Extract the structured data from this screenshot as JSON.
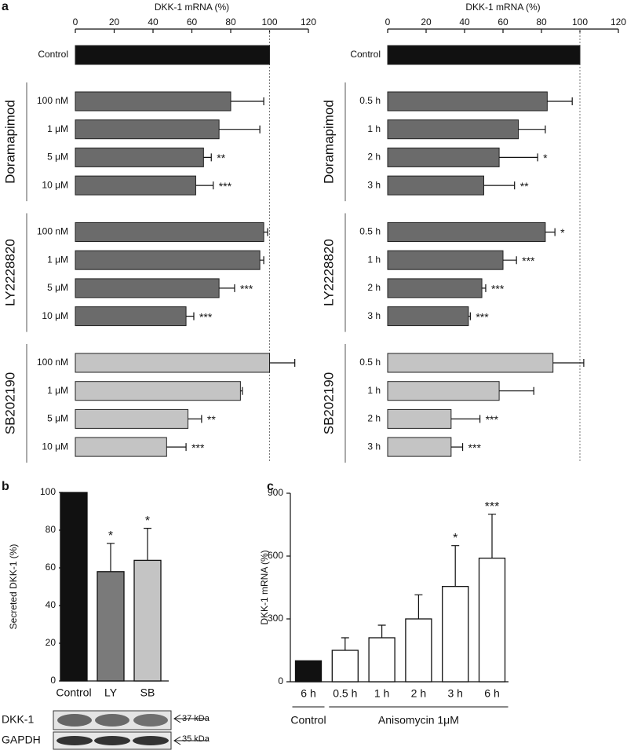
{
  "chart_data": [
    {
      "type": "hbar",
      "panel": "a",
      "xlabel": "DKK-1 mRNA (%)",
      "xlim": [
        0,
        120
      ],
      "xticks": [
        0,
        20,
        40,
        60,
        80,
        100,
        120
      ],
      "reference_line": 100,
      "groups": [
        {
          "color": "#111111",
          "categories": [
            "Control"
          ],
          "values": [
            100
          ],
          "errors": [
            null
          ],
          "annotations": [
            null
          ]
        },
        {
          "name": "Doramapimod",
          "color": "#6b6b6b",
          "categories": [
            "100 nM",
            "1 μM",
            "5 μM",
            "10 μM"
          ],
          "values": [
            80,
            74,
            66,
            62
          ],
          "errors": [
            17,
            21,
            4,
            9
          ],
          "annotations": [
            null,
            null,
            "**",
            "***"
          ]
        },
        {
          "name": "LY2228820",
          "color": "#6b6b6b",
          "categories": [
            "100 nM",
            "1 μM",
            "5 μM",
            "10 μM"
          ],
          "values": [
            97,
            95,
            74,
            57
          ],
          "errors": [
            2,
            2,
            8,
            4
          ],
          "annotations": [
            null,
            null,
            "***",
            "***"
          ]
        },
        {
          "name": "SB202190",
          "color": "#c4c4c4",
          "categories": [
            "100 nM",
            "1 μM",
            "5 μM",
            "10 μM"
          ],
          "values": [
            100,
            85,
            58,
            47
          ],
          "errors": [
            13,
            1,
            7,
            10
          ],
          "annotations": [
            null,
            null,
            "**",
            "***"
          ]
        }
      ]
    },
    {
      "type": "hbar",
      "xlabel": "DKK-1 mRNA (%)",
      "xlim": [
        0,
        120
      ],
      "xticks": [
        0,
        20,
        40,
        60,
        80,
        100,
        120
      ],
      "reference_line": 100,
      "groups": [
        {
          "color": "#111111",
          "categories": [
            "Control"
          ],
          "values": [
            100
          ],
          "errors": [
            null
          ],
          "annotations": [
            null
          ]
        },
        {
          "name": "Doramapimod",
          "color": "#6b6b6b",
          "categories": [
            "0.5 h",
            "1 h",
            "2 h",
            "3 h"
          ],
          "values": [
            83,
            68,
            58,
            50
          ],
          "errors": [
            13,
            14,
            20,
            16
          ],
          "annotations": [
            null,
            null,
            "*",
            "**"
          ]
        },
        {
          "name": "LY2228820",
          "color": "#6b6b6b",
          "categories": [
            "0.5 h",
            "1 h",
            "2 h",
            "3 h"
          ],
          "values": [
            82,
            60,
            49,
            42
          ],
          "errors": [
            5,
            7,
            2,
            1
          ],
          "annotations": [
            "*",
            "***",
            "***",
            "***"
          ]
        },
        {
          "name": "SB202190",
          "color": "#c4c4c4",
          "categories": [
            "0.5 h",
            "1 h",
            "2 h",
            "3 h"
          ],
          "values": [
            86,
            58,
            33,
            33
          ],
          "errors": [
            16,
            18,
            15,
            6
          ],
          "annotations": [
            null,
            null,
            "***",
            "***"
          ]
        }
      ]
    },
    {
      "type": "vbar",
      "panel": "b",
      "ylabel": "Secreted DKK-1 (%)",
      "ylim": [
        0,
        100
      ],
      "yticks": [
        0,
        20,
        40,
        60,
        80,
        100
      ],
      "groups": [
        {
          "color": "#111111",
          "categories": [
            "Control"
          ],
          "values": [
            100
          ],
          "errors": [
            null
          ],
          "annotations": [
            null
          ]
        },
        {
          "color": "#7a7a7a",
          "categories": [
            "LY"
          ],
          "values": [
            58
          ],
          "errors": [
            15
          ],
          "annotations": [
            "*"
          ]
        },
        {
          "color": "#c4c4c4",
          "categories": [
            "SB"
          ],
          "values": [
            64
          ],
          "errors": [
            17
          ],
          "annotations": [
            "*"
          ]
        }
      ],
      "blot": {
        "rows": [
          {
            "name": "DKK-1",
            "size": "37 kDa"
          },
          {
            "name": "GAPDH",
            "size": "35 kDa"
          }
        ]
      }
    },
    {
      "type": "vbar",
      "panel": "c",
      "ylabel": "DKK-1 mRNA (%)",
      "ylim": [
        0,
        900
      ],
      "yticks": [
        0,
        300,
        600,
        900
      ],
      "groups": [
        {
          "name": "Control",
          "color": "#111111",
          "categories": [
            "6 h"
          ],
          "values": [
            100
          ],
          "errors": [
            null
          ],
          "annotations": [
            null
          ]
        },
        {
          "name": "Anisomycin 1μM",
          "color": "#ffffff",
          "categories": [
            "0.5 h",
            "1 h",
            "2 h",
            "3 h",
            "6 h"
          ],
          "values": [
            150,
            210,
            300,
            455,
            590
          ],
          "errors": [
            60,
            60,
            115,
            195,
            210
          ],
          "annotations": [
            null,
            null,
            null,
            "*",
            "***"
          ]
        }
      ]
    }
  ]
}
